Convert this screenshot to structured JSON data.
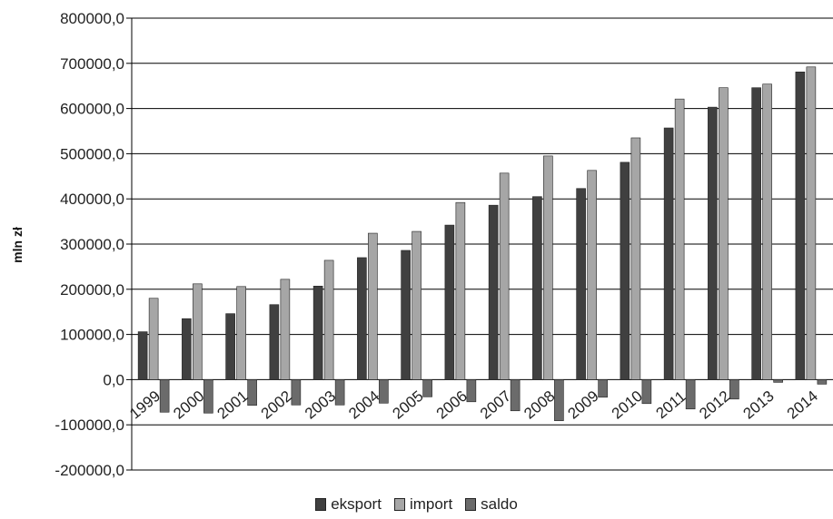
{
  "chart_data": {
    "type": "bar",
    "ylabel": "mln zł",
    "ylim": [
      -200000,
      800000
    ],
    "yticks": [
      800000,
      700000,
      600000,
      500000,
      400000,
      300000,
      200000,
      100000,
      0,
      -100000,
      -200000
    ],
    "ytick_labels": [
      "800000,0",
      "700000,0",
      "600000,0",
      "500000,0",
      "400000,0",
      "300000,0",
      "200000,0",
      "100000,0",
      "0,0",
      "-100000,0",
      "-200000,0"
    ],
    "grid": true,
    "legend_position": "bottom",
    "categories": [
      "1999",
      "2000",
      "2001",
      "2002",
      "2003",
      "2004",
      "2005",
      "2006",
      "2007",
      "2008",
      "2009",
      "2010",
      "2011",
      "2012",
      "2013",
      "2014"
    ],
    "series": [
      {
        "name": "eksport",
        "color": "#404040",
        "values": [
          106000,
          135000,
          146000,
          166000,
          207000,
          270000,
          286000,
          342000,
          386000,
          405000,
          423000,
          481000,
          557000,
          603000,
          646000,
          681000
        ]
      },
      {
        "name": "import",
        "color": "#a6a6a6",
        "values": [
          180000,
          212000,
          206000,
          222000,
          264000,
          324000,
          328000,
          392000,
          457000,
          495000,
          463000,
          535000,
          621000,
          646000,
          654000,
          692000
        ]
      },
      {
        "name": "saldo",
        "color": "#6b6b6b",
        "values": [
          -72000,
          -74000,
          -57000,
          -56000,
          -56000,
          -52000,
          -38000,
          -49000,
          -69000,
          -91000,
          -39000,
          -53000,
          -65000,
          -43000,
          -6000,
          -10000
        ]
      }
    ]
  }
}
